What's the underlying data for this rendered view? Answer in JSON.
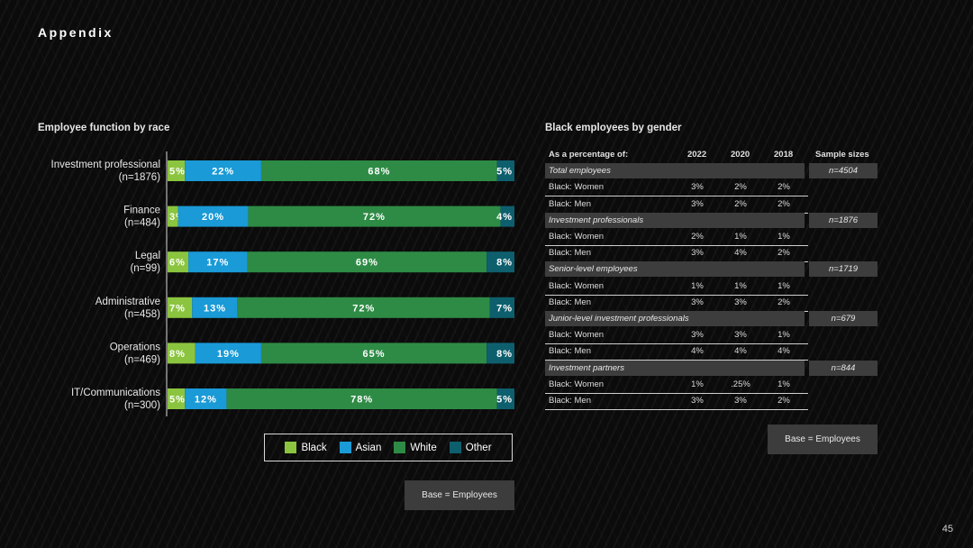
{
  "page_title": "Appendix",
  "page_number": "45",
  "colors": {
    "Black": "#8bc53f",
    "Asian": "#1a9ad6",
    "White": "#2e8b45",
    "Other": "#0e5f6e"
  },
  "chart_data": {
    "type": "bar",
    "orientation": "horizontal-stacked-100",
    "title": "Employee function by race",
    "categories": [
      {
        "name": "Investment professional",
        "n": "(n=1876)"
      },
      {
        "name": "Finance",
        "n": "(n=484)"
      },
      {
        "name": "Legal",
        "n": "(n=99)"
      },
      {
        "name": "Administrative",
        "n": "(n=458)"
      },
      {
        "name": "Operations",
        "n": "(n=469)"
      },
      {
        "name": "IT/Communications",
        "n": "(n=300)"
      }
    ],
    "series": [
      {
        "name": "Black",
        "values": [
          5,
          3,
          6,
          7,
          8,
          5
        ]
      },
      {
        "name": "Asian",
        "values": [
          22,
          20,
          17,
          13,
          19,
          12
        ]
      },
      {
        "name": "White",
        "values": [
          68,
          72,
          69,
          72,
          65,
          78
        ]
      },
      {
        "name": "Other",
        "values": [
          5,
          4,
          8,
          7,
          8,
          5
        ]
      }
    ],
    "xlim": [
      0,
      100
    ],
    "legend": [
      "Black",
      "Asian",
      "White",
      "Other"
    ],
    "base_note": "Base = Employees"
  },
  "table": {
    "title": "Black employees by gender",
    "headers": [
      "As a percentage of:",
      "2022",
      "2020",
      "2018",
      "Sample sizes"
    ],
    "sections": [
      {
        "label": "Total employees",
        "n": "n=4504",
        "rows": [
          {
            "label": "Black: Women",
            "v": [
              "3%",
              "2%",
              "2%"
            ]
          },
          {
            "label": "Black: Men",
            "v": [
              "3%",
              "2%",
              "2%"
            ]
          }
        ]
      },
      {
        "label": "Investment professionals",
        "n": "n=1876",
        "rows": [
          {
            "label": "Black: Women",
            "v": [
              "2%",
              "1%",
              "1%"
            ]
          },
          {
            "label": "Black: Men",
            "v": [
              "3%",
              "4%",
              "2%"
            ]
          }
        ]
      },
      {
        "label": "Senior-level employees",
        "n": "n=1719",
        "rows": [
          {
            "label": "Black: Women",
            "v": [
              "1%",
              "1%",
              "1%"
            ]
          },
          {
            "label": "Black: Men",
            "v": [
              "3%",
              "3%",
              "2%"
            ]
          }
        ]
      },
      {
        "label": "Junior-level investment professionals",
        "n": "n=679",
        "rows": [
          {
            "label": "Black: Women",
            "v": [
              "3%",
              "3%",
              "1%"
            ]
          },
          {
            "label": "Black: Men",
            "v": [
              "4%",
              "4%",
              "4%"
            ]
          }
        ]
      },
      {
        "label": "Investment partners",
        "n": "n=844",
        "rows": [
          {
            "label": "Black: Women",
            "v": [
              "1%",
              ".25%",
              "1%"
            ]
          },
          {
            "label": "Black: Men",
            "v": [
              "3%",
              "3%",
              "2%"
            ]
          }
        ]
      }
    ],
    "base_note": "Base = Employees"
  }
}
